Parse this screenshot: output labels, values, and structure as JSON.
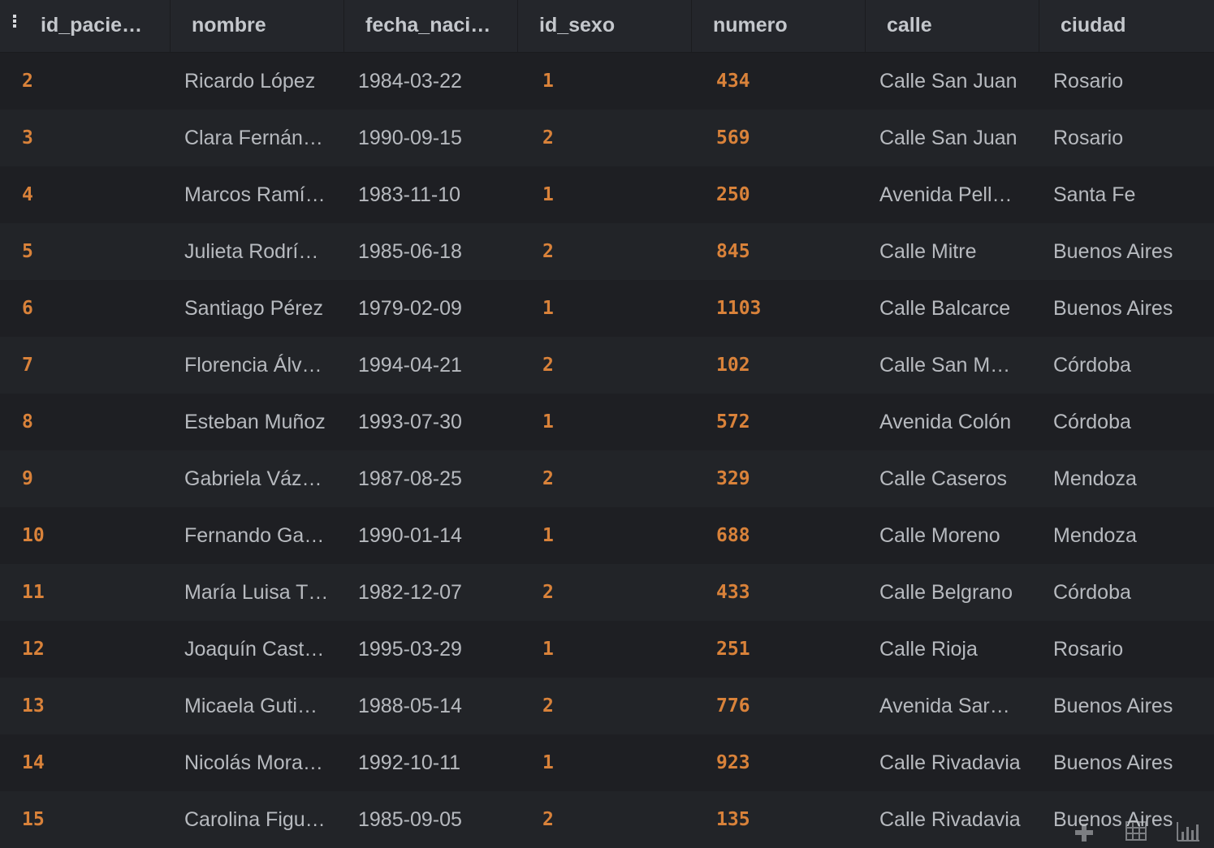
{
  "columns": [
    "id_pacie…",
    "nombre",
    "fecha_naci…",
    "id_sexo",
    "numero",
    "calle",
    "ciudad"
  ],
  "rows": [
    [
      "2",
      "Ricardo López",
      "1984-03-22",
      "1",
      "434",
      "Calle San Juan",
      "Rosario"
    ],
    [
      "3",
      "Clara Fernán…",
      "1990-09-15",
      "2",
      "569",
      "Calle San Juan",
      "Rosario"
    ],
    [
      "4",
      "Marcos Ramí…",
      "1983-11-10",
      "1",
      "250",
      "Avenida Pell…",
      "Santa Fe"
    ],
    [
      "5",
      "Julieta Rodrí…",
      "1985-06-18",
      "2",
      "845",
      "Calle Mitre",
      "Buenos Aires"
    ],
    [
      "6",
      "Santiago Pérez",
      "1979-02-09",
      "1",
      "1103",
      "Calle Balcarce",
      "Buenos Aires"
    ],
    [
      "7",
      "Florencia Álv…",
      "1994-04-21",
      "2",
      "102",
      "Calle San M…",
      "Córdoba"
    ],
    [
      "8",
      "Esteban Muñoz",
      "1993-07-30",
      "1",
      "572",
      "Avenida Colón",
      "Córdoba"
    ],
    [
      "9",
      "Gabriela Váz…",
      "1987-08-25",
      "2",
      "329",
      "Calle Caseros",
      "Mendoza"
    ],
    [
      "10",
      "Fernando Ga…",
      "1990-01-14",
      "1",
      "688",
      "Calle Moreno",
      "Mendoza"
    ],
    [
      "11",
      "María Luisa T…",
      "1982-12-07",
      "2",
      "433",
      "Calle Belgrano",
      "Córdoba"
    ],
    [
      "12",
      "Joaquín Cast…",
      "1995-03-29",
      "1",
      "251",
      "Calle Rioja",
      "Rosario"
    ],
    [
      "13",
      "Micaela Guti…",
      "1988-05-14",
      "2",
      "776",
      "Avenida Sar…",
      "Buenos Aires"
    ],
    [
      "14",
      "Nicolás Mora…",
      "1992-10-11",
      "1",
      "923",
      "Calle Rivadavia",
      "Buenos Aires"
    ],
    [
      "15",
      "Carolina Figu…",
      "1985-09-05",
      "2",
      "135",
      "Calle Rivadavia",
      "Buenos Aires"
    ]
  ],
  "toolbar": {
    "icons": [
      "add-icon",
      "table-view-icon",
      "chart-view-icon"
    ]
  },
  "colors": {
    "background": "#1e1f22",
    "header_bg": "#24262b",
    "header_text": "#c4c7cc",
    "cell_text": "#b7babf",
    "number_text": "#d9823a"
  }
}
